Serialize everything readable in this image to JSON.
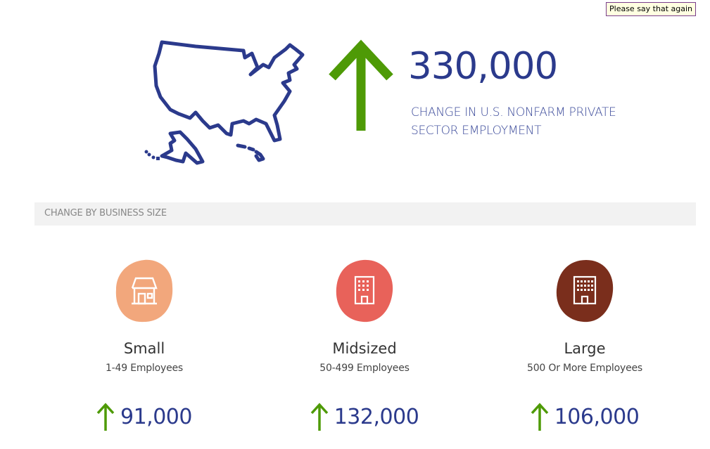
{
  "tooltip": {
    "text": "Please say that again"
  },
  "hero": {
    "value": "330,000",
    "caption": "CHANGE IN U.S. NONFARM PRIVATE SECTOR EMPLOYMENT",
    "map_icon": "us-map-icon",
    "arrow_icon": "arrow-up-icon",
    "direction": "up"
  },
  "section": {
    "title": "CHANGE BY BUSINESS SIZE"
  },
  "sizes": [
    {
      "title": "Small",
      "subtitle": "1-49 Employees",
      "value": "91,000",
      "icon": "storefront-icon",
      "color": "#f2a77c"
    },
    {
      "title": "Midsized",
      "subtitle": "50-499 Employees",
      "value": "132,000",
      "icon": "office-building-icon",
      "color": "#e8625a"
    },
    {
      "title": "Large",
      "subtitle": "500 Or More Employees",
      "value": "106,000",
      "icon": "large-building-icon",
      "color": "#7a2e1c"
    }
  ],
  "colors": {
    "accent_blue": "#2b3a8c",
    "accent_green": "#4e9a06",
    "header_bg": "#f2f2f2"
  }
}
